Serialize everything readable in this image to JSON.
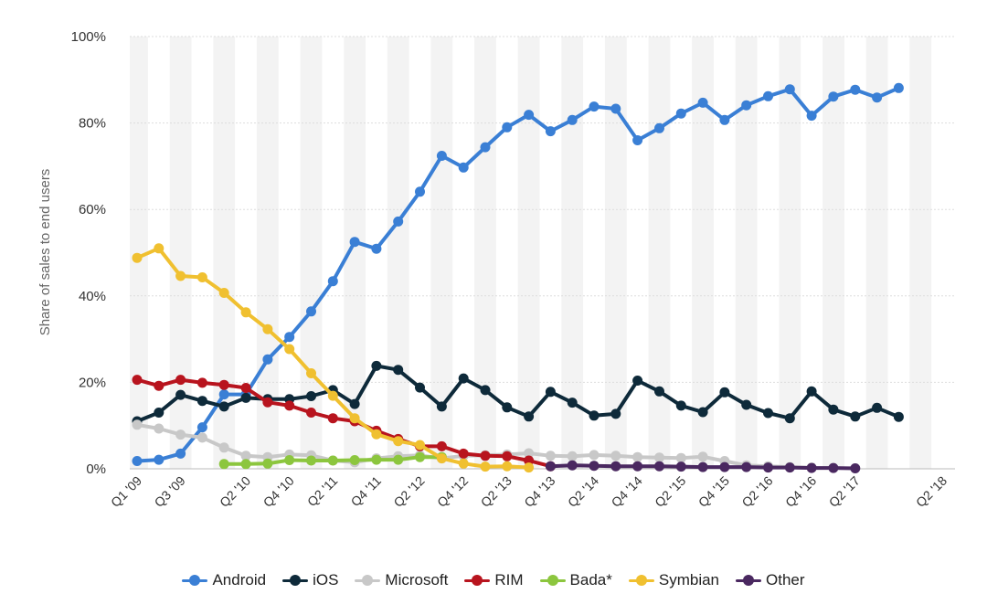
{
  "chart_data": {
    "type": "line",
    "title": "",
    "xlabel": "",
    "ylabel": "Share of sales to end users",
    "ylim": [
      0,
      100
    ],
    "yticks": [
      "0%",
      "20%",
      "40%",
      "60%",
      "80%",
      "100%"
    ],
    "ytick_values": [
      0,
      20,
      40,
      60,
      80,
      100
    ],
    "categories": [
      "Q1 '09",
      "Q2 '09",
      "Q3 '09",
      "Q4 '09",
      "Q1 '10",
      "Q2 '10",
      "Q3 '10",
      "Q4 '10",
      "Q1 '11",
      "Q2 '11",
      "Q3 '11",
      "Q4 '11",
      "Q1 '12",
      "Q2 '12",
      "Q3 '12",
      "Q4 '12",
      "Q1 '13",
      "Q2 '13",
      "Q3 '13",
      "Q4 '13",
      "Q1 '14",
      "Q2 '14",
      "Q3 '14",
      "Q4 '14",
      "Q1 '15",
      "Q2 '15",
      "Q3 '15",
      "Q4 '15",
      "Q1 '16",
      "Q2 '16",
      "Q3 '16",
      "Q4 '16",
      "Q1 '17",
      "Q2 '17",
      "Q3 '17",
      "Q4 '17",
      "Q1 '18",
      "Q2 '18"
    ],
    "xtick_labels": [
      "Q1 '09",
      "Q3 '09",
      "Q2 '10",
      "Q4 '10",
      "Q2 '11",
      "Q4 '11",
      "Q2 '12",
      "Q4 '12",
      "Q2 '13",
      "Q4 '13",
      "Q2 '14",
      "Q4 '14",
      "Q2 '15",
      "Q4 '15",
      "Q2 '16",
      "Q4 '16",
      "Q2 '17",
      "Q2 '18"
    ],
    "xtick_indices": [
      0,
      2,
      5,
      7,
      9,
      11,
      13,
      15,
      17,
      19,
      21,
      23,
      25,
      27,
      29,
      31,
      33,
      37
    ],
    "legend_position": "bottom-center",
    "grid": true,
    "series": [
      {
        "name": "Android",
        "color": "#3a7fd5",
        "values": [
          1.8,
          2.1,
          3.5,
          9.6,
          17.2,
          17.2,
          25.3,
          30.5,
          36.4,
          43.4,
          52.5,
          50.9,
          57.2,
          64.1,
          72.4,
          69.7,
          74.4,
          79.0,
          81.9,
          78.1,
          80.7,
          83.8,
          83.3,
          76.0,
          78.8,
          82.2,
          84.7,
          80.7,
          84.1,
          86.2,
          87.8,
          81.7,
          86.1,
          87.7,
          85.9,
          88.1,
          null,
          null
        ]
      },
      {
        "name": "iOS",
        "color": "#0e2a3a",
        "values": [
          11.0,
          13.0,
          17.1,
          15.7,
          14.4,
          16.4,
          16.1,
          16.1,
          16.8,
          18.2,
          15.0,
          23.8,
          22.9,
          18.8,
          14.4,
          20.9,
          18.2,
          14.2,
          12.1,
          17.8,
          15.3,
          12.3,
          12.7,
          20.4,
          17.9,
          14.6,
          13.1,
          17.7,
          14.8,
          12.9,
          11.7,
          17.9,
          13.7,
          12.1,
          14.1,
          12.0,
          null,
          null
        ]
      },
      {
        "name": "Microsoft",
        "color": "#c8c8c8",
        "values": [
          10.2,
          9.3,
          7.9,
          7.2,
          4.9,
          3.0,
          2.7,
          3.3,
          3.1,
          1.9,
          1.5,
          2.4,
          2.9,
          3.1,
          2.4,
          3.0,
          3.1,
          3.3,
          3.6,
          3.0,
          2.9,
          3.2,
          3.0,
          2.7,
          2.6,
          2.5,
          2.8,
          1.8,
          0.8,
          0.6,
          0.4,
          0.3,
          null,
          null,
          null,
          null,
          null,
          null
        ]
      },
      {
        "name": "RIM",
        "color": "#b8141e",
        "values": [
          20.6,
          19.2,
          20.6,
          19.9,
          19.4,
          18.7,
          15.4,
          14.6,
          13.0,
          11.7,
          11.0,
          8.8,
          6.9,
          5.2,
          5.2,
          3.5,
          3.0,
          2.9,
          1.9,
          0.6,
          null,
          null,
          null,
          null,
          null,
          null,
          null,
          null,
          null,
          null,
          null,
          null,
          null,
          null,
          null,
          null,
          null,
          null
        ]
      },
      {
        "name": "Bada*",
        "color": "#8cc63e",
        "values": [
          null,
          null,
          null,
          null,
          1.1,
          1.1,
          1.2,
          2.0,
          1.9,
          1.9,
          2.0,
          2.1,
          2.1,
          2.7,
          2.7,
          null,
          null,
          null,
          null,
          null,
          null,
          null,
          null,
          null,
          null,
          null,
          null,
          null,
          null,
          null,
          null,
          null,
          null,
          null,
          null,
          null,
          null,
          null
        ]
      },
      {
        "name": "Symbian",
        "color": "#f0c030",
        "values": [
          48.8,
          51.0,
          44.6,
          44.3,
          40.7,
          36.2,
          32.3,
          27.7,
          22.1,
          16.9,
          11.7,
          8.0,
          6.4,
          5.5,
          2.4,
          1.2,
          0.5,
          0.6,
          0.3,
          null,
          null,
          null,
          null,
          null,
          null,
          null,
          null,
          null,
          null,
          null,
          null,
          null,
          null,
          null,
          null,
          null,
          null,
          null
        ]
      },
      {
        "name": "Other",
        "color": "#4a2860",
        "values": [
          null,
          null,
          null,
          null,
          null,
          null,
          null,
          null,
          null,
          null,
          null,
          null,
          null,
          null,
          null,
          null,
          null,
          null,
          null,
          0.6,
          0.8,
          0.7,
          0.6,
          0.6,
          0.6,
          0.5,
          0.4,
          0.4,
          0.4,
          0.3,
          0.3,
          0.2,
          0.2,
          0.1,
          null,
          null,
          null,
          null
        ]
      }
    ]
  }
}
